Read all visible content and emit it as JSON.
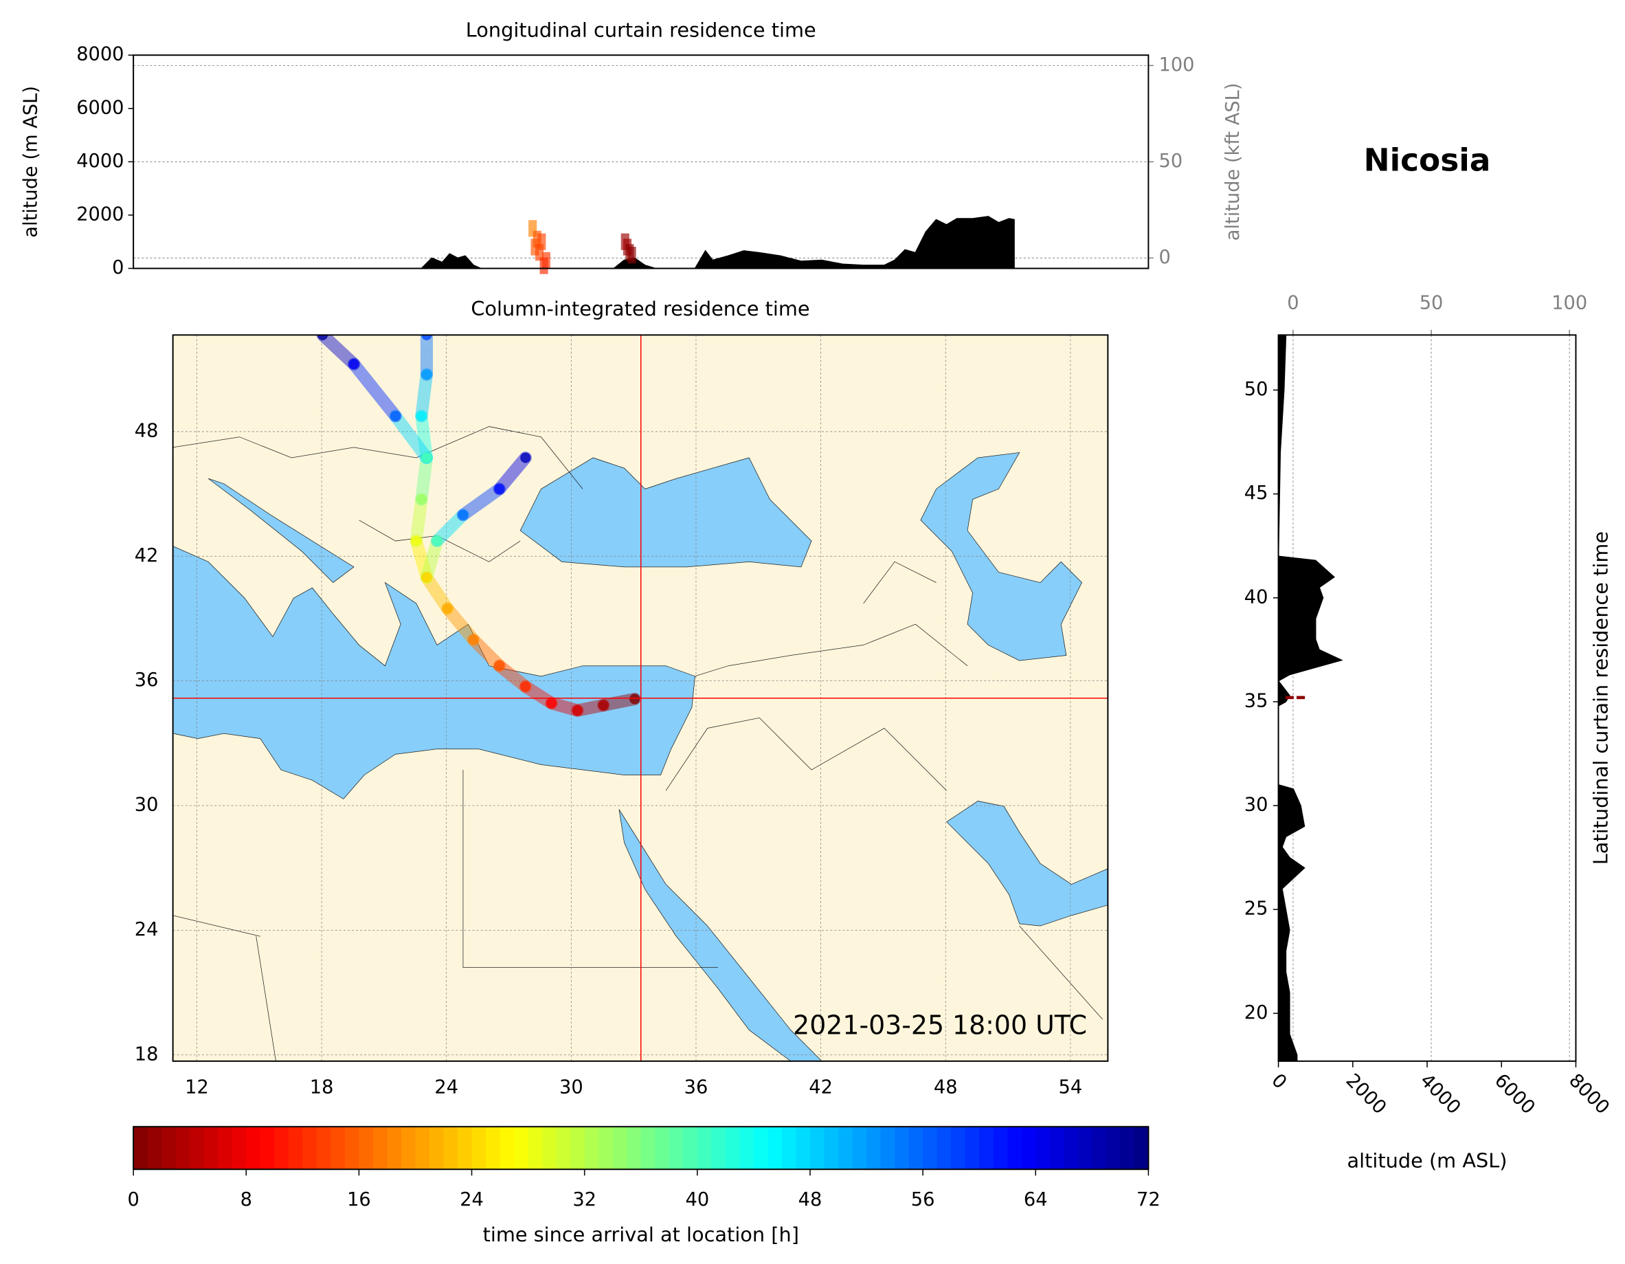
{
  "chart_data": [
    {
      "type": "area",
      "title": "Longitudinal curtain residence time",
      "ylabel": "altitude (m ASL)",
      "y2label": "altitude (kft ASL)",
      "xlim": [
        10,
        55
      ],
      "ylim": [
        0,
        8000
      ],
      "yticks": [
        0,
        2000,
        4000,
        6000,
        8000
      ],
      "y2lim": [
        -5.4,
        105.4
      ],
      "y2ticks": [
        0,
        50,
        100
      ],
      "grid": true,
      "color": "#000000",
      "x": [
        22.77,
        23.23,
        23.69,
        24.02,
        24.38,
        24.71,
        25.08,
        25.4,
        31.3,
        31.76,
        32.22,
        32.68,
        33.14,
        34.9,
        35.36,
        35.68,
        36.37,
        37.06,
        37.75,
        38.68,
        39.6,
        40.52,
        41.44,
        42.36,
        43.29,
        43.75,
        44.21,
        44.67,
        45.13,
        45.59,
        46.05,
        46.51,
        47.21,
        47.9,
        48.36,
        48.82,
        49.05
      ],
      "values": [
        0,
        390,
        230,
        550,
        390,
        470,
        120,
        0,
        0,
        310,
        390,
        120,
        0,
        0,
        660,
        310,
        470,
        660,
        590,
        470,
        270,
        310,
        160,
        120,
        120,
        310,
        700,
        590,
        1370,
        1830,
        1640,
        1870,
        1870,
        1950,
        1720,
        1870,
        1830
      ],
      "plume": {
        "x": [
          27.7,
          27.9,
          28.1,
          28.3,
          27.8,
          28.0,
          28.2,
          31.8,
          31.9,
          32.0,
          32.1
        ],
        "y": [
          1500,
          1100,
          1000,
          300,
          800,
          600,
          100,
          1000,
          800,
          600,
          500
        ],
        "hours": [
          18,
          15,
          14,
          13,
          15,
          14,
          12,
          2,
          2,
          1,
          1
        ]
      }
    },
    {
      "type": "map",
      "title": "Column-integrated residence time",
      "site_name": "Nicosia",
      "annotation": "2021-03-25 18:00 UTC",
      "xlim": [
        10.85,
        55.8
      ],
      "ylim": [
        17.7,
        52.65
      ],
      "xticks": [
        12,
        18,
        24,
        30,
        36,
        42,
        48,
        54
      ],
      "yticks": [
        18,
        24,
        30,
        36,
        42,
        48
      ],
      "grid": true,
      "land_color": "#fef6dc",
      "sea_color": "#87cefa",
      "site": {
        "lon": 33.35,
        "lat": 35.17,
        "color": "#ff0000"
      },
      "trajectories": [
        {
          "lon": [
            33.05,
            31.55,
            30.3,
            29.05,
            27.8,
            26.55,
            25.3,
            24.05,
            23.05,
            22.55,
            22.8,
            23.05,
            22.8,
            23.05,
            23.05
          ],
          "lat": [
            35.13,
            34.83,
            34.58,
            34.93,
            35.73,
            36.73,
            37.98,
            39.48,
            40.98,
            42.74,
            44.74,
            46.74,
            48.75,
            50.75,
            52.65
          ],
          "hours": [
            0,
            3,
            6,
            9,
            12,
            15,
            18,
            21,
            24,
            28,
            34,
            40,
            46,
            52,
            58
          ]
        },
        {
          "lon": [
            23.05,
            23.55,
            24.8,
            26.55,
            27.8
          ],
          "lat": [
            40.98,
            42.74,
            43.99,
            45.24,
            46.74
          ],
          "hours": [
            24,
            40,
            55,
            62,
            68
          ]
        },
        {
          "lon": [
            23.05,
            21.55,
            19.55,
            18.05
          ],
          "lat": [
            46.74,
            48.75,
            51.25,
            52.65
          ],
          "hours": [
            40,
            56,
            64,
            70
          ]
        }
      ]
    },
    {
      "type": "area",
      "orientation": "horizontal",
      "xlabel": "altitude (m ASL)",
      "ylabel": "Latitudinal curtain residence time",
      "xlim": [
        0,
        8000
      ],
      "xticks": [
        0,
        2000,
        4000,
        6000,
        8000
      ],
      "x2lim": [
        -5.3,
        102.3
      ],
      "x2ticks": [
        0,
        50,
        100
      ],
      "ylim": [
        17.7,
        52.65
      ],
      "yticks": [
        20,
        25,
        30,
        35,
        40,
        45,
        50
      ],
      "grid": true,
      "color": "#000000",
      "y": [
        52.6,
        50,
        47,
        45,
        42,
        41.8,
        41,
        40.5,
        40,
        39,
        38,
        37.5,
        37,
        36.6,
        36.3,
        36,
        35.3,
        35,
        34.8,
        31,
        30.8,
        30,
        29.5,
        29,
        28.5,
        28,
        27.5,
        27,
        26.5,
        26,
        25,
        24,
        23,
        22,
        21,
        20,
        19,
        18,
        17.7
      ],
      "values": [
        200,
        150,
        50,
        30,
        0,
        1000,
        1500,
        1100,
        1200,
        1000,
        1000,
        1100,
        1700,
        900,
        300,
        0,
        300,
        200,
        0,
        0,
        400,
        600,
        650,
        700,
        200,
        100,
        300,
        700,
        400,
        100,
        200,
        300,
        200,
        200,
        300,
        300,
        300,
        500,
        500
      ],
      "plume": {
        "y": [
          35.2,
          35.2
        ],
        "x": [
          300,
          600
        ],
        "hours": [
          1,
          1
        ]
      }
    },
    {
      "type": "colorbar",
      "xlabel": "time since arrival at location [h]",
      "colormap": "jet_r",
      "xlim": [
        0,
        72
      ],
      "xticks": [
        0,
        8,
        16,
        24,
        32,
        40,
        48,
        56,
        64,
        72
      ]
    }
  ]
}
